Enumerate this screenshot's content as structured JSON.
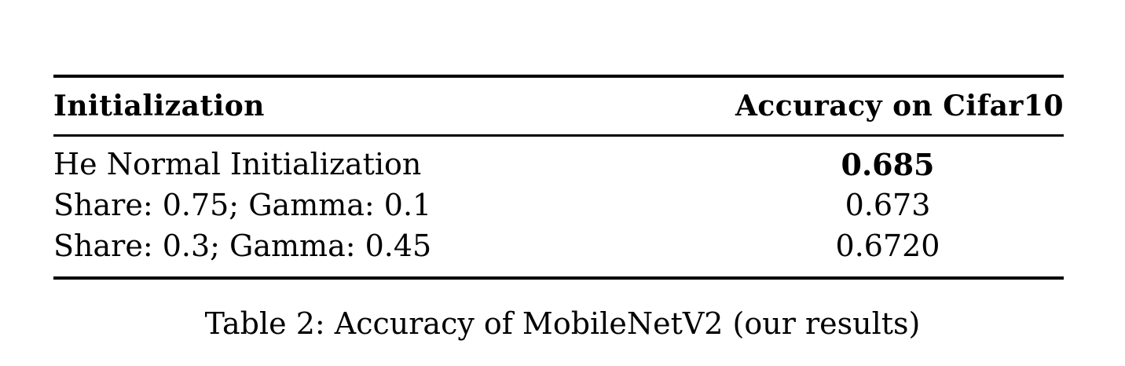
{
  "table": {
    "headers": {
      "col1": "Initialization",
      "col2": "Accuracy on Cifar10"
    },
    "rows": [
      {
        "init": "He Normal Initialization",
        "accuracy": "0.685",
        "bold": true
      },
      {
        "init": "Share: 0.75; Gamma: 0.1",
        "accuracy": "0.673",
        "bold": false
      },
      {
        "init": "Share: 0.3; Gamma: 0.45",
        "accuracy": "0.6720",
        "bold": false
      }
    ]
  },
  "caption": "Table 2: Accuracy of MobileNetV2 (our results)"
}
